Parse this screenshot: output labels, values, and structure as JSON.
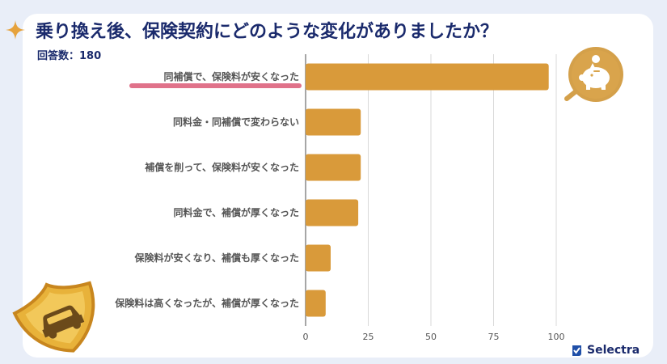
{
  "title": "乗り換え後、保険契約にどのような変化がありましたか？",
  "subtitle": "回答数：180",
  "brand": {
    "name": "Selectra",
    "icon": "selectra-logo-icon"
  },
  "colors": {
    "bar": "#d99a3a",
    "highlight": "#e0728a",
    "title": "#1a2a6c",
    "grid": "#d9d9d9"
  },
  "chart_data": {
    "type": "bar",
    "orientation": "horizontal",
    "categories": [
      "同補償で、保険料が安くなった",
      "同料金・同補償で変わらない",
      "補償を削って、保険料が安くなった",
      "同料金で、補償が厚くなった",
      "保険料が安くなり、補償も厚くなった",
      "保険料は高くなったが、補償が厚くなった"
    ],
    "values": [
      97,
      22,
      22,
      21,
      10,
      8
    ],
    "xlim": [
      0,
      100
    ],
    "xticks": [
      "0",
      "25",
      "50",
      "75",
      "100"
    ],
    "xtick_values": [
      0,
      25,
      50,
      75,
      100
    ],
    "grid": true,
    "highlighted_category_index": 0
  }
}
